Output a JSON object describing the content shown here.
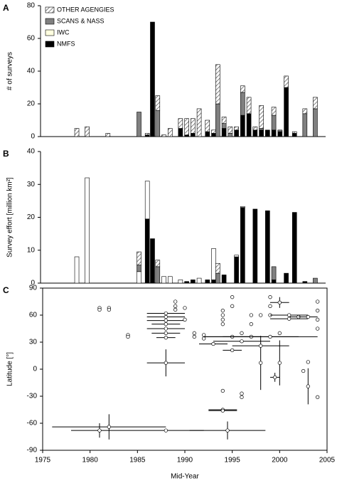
{
  "chart_data": [
    {
      "type": "bar",
      "panel_label": "A",
      "ylabel": "# of surveys",
      "stacked": true,
      "legend": "top-left",
      "x": [
        1981,
        1982,
        1984,
        1987,
        1987.8,
        1988.3,
        1988.8,
        1989.4,
        1990,
        1991,
        1991.6,
        1992.2,
        1992.8,
        1993.6,
        1994.2,
        1994.6,
        1995.2,
        1995.8,
        1996.4,
        1997,
        1997.6,
        1998.2,
        1998.8,
        1999.4,
        2000,
        2000.6,
        2001.2,
        2002,
        2003,
        2004
      ],
      "xlim": [
        1977.5,
        2005
      ],
      "ylim": [
        0,
        80
      ],
      "yticks": [
        0,
        20,
        40,
        60,
        80
      ],
      "series": [
        {
          "name": "OTHER AGENGIES",
          "color": "#ffffff",
          "hatch": true,
          "values": [
            5,
            6,
            2,
            0,
            1,
            0,
            9,
            1,
            5,
            6,
            10,
            9,
            17,
            7,
            2,
            24,
            4,
            4,
            2,
            4,
            10,
            2,
            14,
            0,
            5,
            0,
            7,
            1,
            3,
            7
          ]
        },
        {
          "name": "SCANS & NASS",
          "color": "#808080",
          "values": [
            0,
            0,
            0,
            15,
            0,
            0,
            16,
            0,
            0,
            0,
            0,
            0,
            0,
            0,
            0,
            20,
            3,
            2,
            0,
            14,
            0,
            0,
            1,
            0,
            9,
            1,
            0,
            0,
            14,
            17
          ]
        },
        {
          "name": "IWC",
          "color": "#ffffe0",
          "values": [
            0,
            0,
            0,
            0,
            0,
            0,
            0,
            0,
            0,
            0,
            0,
            0,
            0,
            0,
            0,
            0,
            0,
            0,
            0,
            0,
            0,
            0,
            0,
            0,
            0,
            0,
            0,
            0,
            0,
            0
          ]
        },
        {
          "name": "NMFS",
          "color": "#000000",
          "values": [
            0,
            0,
            0,
            0,
            1,
            70,
            0,
            0,
            0,
            5,
            1,
            2,
            0,
            3,
            2,
            0,
            5,
            0,
            4,
            13,
            14,
            4,
            4,
            4,
            4,
            3,
            30,
            2,
            0,
            0
          ]
        }
      ]
    },
    {
      "type": "bar",
      "panel_label": "B",
      "ylabel": "Survey effort [million km²]",
      "stacked": true,
      "x": [
        1981,
        1982,
        1987,
        1987.8,
        1988.3,
        1988.8,
        1989.4,
        1990,
        1991,
        1991.6,
        1992.2,
        1992.8,
        1993.6,
        1994.2,
        1994.6,
        1995.2,
        1996.4,
        1997,
        1998.2,
        1999.4,
        2000,
        2001.2,
        2002,
        2003,
        2004
      ],
      "xlim": [
        1977.5,
        2005
      ],
      "ylim": [
        0,
        40
      ],
      "yticks": [
        0,
        10,
        20,
        30,
        40
      ],
      "series": [
        {
          "name": "OTHER AGENGIES",
          "color": "#ffffff",
          "hatch": true,
          "values": [
            0,
            0,
            4,
            0,
            0,
            2,
            0,
            0,
            0,
            0,
            0,
            0,
            0,
            0,
            3,
            0,
            0,
            0,
            0,
            0,
            0,
            0,
            0,
            0,
            0
          ]
        },
        {
          "name": "SCANS & NASS",
          "color": "#808080",
          "values": [
            0,
            0,
            2,
            0,
            0,
            5,
            0,
            0,
            0,
            0,
            0,
            0,
            0,
            0,
            3,
            0,
            0,
            0,
            0,
            0,
            4,
            0,
            0,
            0,
            1.5
          ]
        },
        {
          "name": "IWC",
          "color": "#ffffff",
          "values": [
            8,
            32,
            3.5,
            11.5,
            0,
            0,
            2,
            2,
            1,
            0,
            0,
            1.5,
            0,
            9.5,
            0,
            0,
            0.5,
            0.3,
            0,
            0,
            0,
            0,
            0,
            0,
            0
          ]
        },
        {
          "name": "NMFS",
          "color": "#000000",
          "values": [
            0,
            0,
            0,
            19.5,
            13.5,
            0,
            0,
            0,
            0,
            0.5,
            1,
            0,
            1,
            1,
            0,
            2.5,
            8,
            23,
            22.5,
            22,
            1,
            3,
            21.5,
            0.5,
            0
          ]
        }
      ]
    },
    {
      "type": "scatter",
      "panel_label": "C",
      "ylabel": "Latitude [°]",
      "xlabel": "Mid-Year",
      "xlim": [
        1975,
        2005
      ],
      "ylim": [
        -90,
        90
      ],
      "xticks": [
        1975,
        1980,
        1985,
        1990,
        1995,
        2000,
        2005
      ],
      "yticks": [
        90,
        60,
        30,
        0,
        -30,
        -60,
        -90
      ],
      "series": [
        {
          "color": "#ffffff",
          "x": [
            1981,
            1981,
            1982,
            1982,
            1984,
            1984,
            1988,
            1982,
            1981,
            1988,
            1994.5,
            1994,
            1994,
            1994,
            1996,
            1996,
            1998,
            1999.5,
            2000,
            2003,
            2003,
            2004,
            2002.5,
            1988,
            1988,
            1988,
            1988,
            1988,
            1988,
            1988,
            1989,
            1989,
            1989,
            1990,
            1991,
            1991,
            1992,
            1992,
            1993,
            1994,
            1994,
            1994,
            1994,
            1995,
            1995,
            1995,
            1996,
            1996,
            1997,
            1997,
            1997,
            1998,
            1998,
            1999,
            1999,
            1999,
            1999,
            2000,
            2000,
            2001,
            2001,
            2002,
            2003,
            2004,
            2004,
            2004,
            2004,
            1995,
            1990
          ],
          "values": [
            68,
            66,
            68,
            66,
            38,
            36,
            7,
            -64,
            -68,
            -68,
            -68,
            -45,
            -46,
            -24,
            -27,
            -31,
            7,
            -9,
            7,
            -19,
            8,
            -31,
            -2,
            62,
            58,
            54,
            50,
            45,
            40,
            35,
            75,
            70,
            66,
            68,
            40,
            36,
            38,
            34,
            28,
            65,
            60,
            55,
            50,
            36,
            70,
            80,
            31,
            40,
            60,
            50,
            36,
            26,
            60,
            80,
            70,
            60,
            36,
            74,
            40,
            60,
            56,
            58,
            58,
            45,
            55,
            65,
            75,
            21,
            55
          ],
          "xerr": [
            0,
            0,
            0,
            0,
            0,
            0,
            2,
            6,
            3,
            4,
            4,
            1.5,
            1.5,
            0,
            0,
            0,
            0,
            0.5,
            0,
            0,
            0,
            0,
            0,
            2,
            2,
            2,
            1.5,
            2,
            1.5,
            1,
            0,
            0,
            0,
            0,
            0,
            0,
            0,
            0,
            1.5,
            0,
            0,
            0,
            0,
            3,
            0,
            0,
            3,
            0,
            0,
            0,
            5,
            3,
            0,
            0,
            0,
            0,
            5,
            1,
            0,
            2,
            2,
            1,
            1,
            0,
            0,
            0,
            0,
            1,
            0
          ],
          "yerr": [
            0,
            0,
            0,
            0,
            0,
            0,
            15,
            14,
            8,
            0,
            10,
            0,
            0,
            0,
            0,
            0,
            30,
            5,
            25,
            20,
            0,
            0,
            0,
            0,
            0,
            0,
            0,
            0,
            0,
            0,
            0,
            0,
            0,
            0,
            0,
            0,
            0,
            0,
            0,
            0,
            0,
            0,
            0,
            0,
            0,
            0,
            0,
            0,
            0,
            0,
            0,
            0,
            0,
            0,
            0,
            0,
            0,
            6,
            0,
            0,
            0,
            0,
            0,
            0,
            0,
            0,
            0,
            0,
            0
          ]
        }
      ]
    }
  ]
}
